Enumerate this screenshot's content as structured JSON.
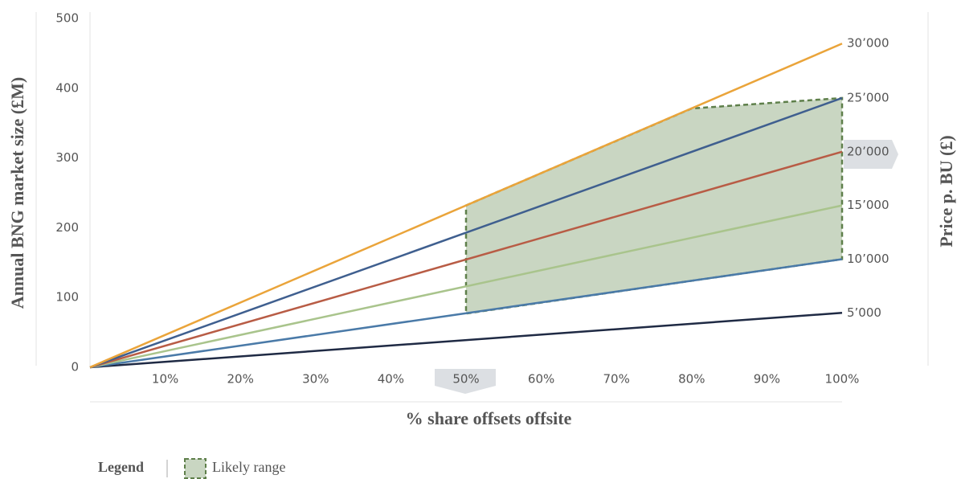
{
  "chart_data": {
    "type": "line",
    "ylabel": "Annual BNG market size (£M)",
    "xlabel": "% share offsets offsite",
    "y2label": "Price p. BU (£)",
    "x": [
      0,
      100
    ],
    "xlim": [
      0,
      100
    ],
    "xticks": [
      {
        "value": 10,
        "label": "10%"
      },
      {
        "value": 20,
        "label": "20%"
      },
      {
        "value": 30,
        "label": "30%"
      },
      {
        "value": 40,
        "label": "40%"
      },
      {
        "value": 50,
        "label": "50%"
      },
      {
        "value": 60,
        "label": "60%"
      },
      {
        "value": 70,
        "label": "70%"
      },
      {
        "value": 80,
        "label": "80%"
      },
      {
        "value": 90,
        "label": "90%"
      },
      {
        "value": 100,
        "label": "100%"
      }
    ],
    "ylim": [
      0,
      500
    ],
    "yticks": [
      0,
      100,
      200,
      300,
      400,
      500
    ],
    "series": [
      {
        "name": "5’000",
        "color": "#1f2a44",
        "values": [
          0,
          78
        ]
      },
      {
        "name": "10’000",
        "color": "#4a7aa8",
        "values": [
          0,
          155
        ]
      },
      {
        "name": "15’000",
        "color": "#a9c48c",
        "values": [
          0,
          232
        ]
      },
      {
        "name": "20’000",
        "color": "#b85c45",
        "values": [
          0,
          309
        ]
      },
      {
        "name": "25’000",
        "color": "#3f5f8f",
        "values": [
          0,
          386
        ]
      },
      {
        "name": "30’000",
        "color": "#eaa43a",
        "values": [
          0,
          464
        ]
      }
    ],
    "range": {
      "name": "Likely range",
      "color": "#c9d6c2",
      "edge": "#5e7f4a",
      "x": [
        50,
        80,
        100
      ],
      "upper": [
        232,
        371,
        386
      ],
      "lower": [
        77,
        124,
        155
      ]
    },
    "legend_title": "Legend"
  }
}
